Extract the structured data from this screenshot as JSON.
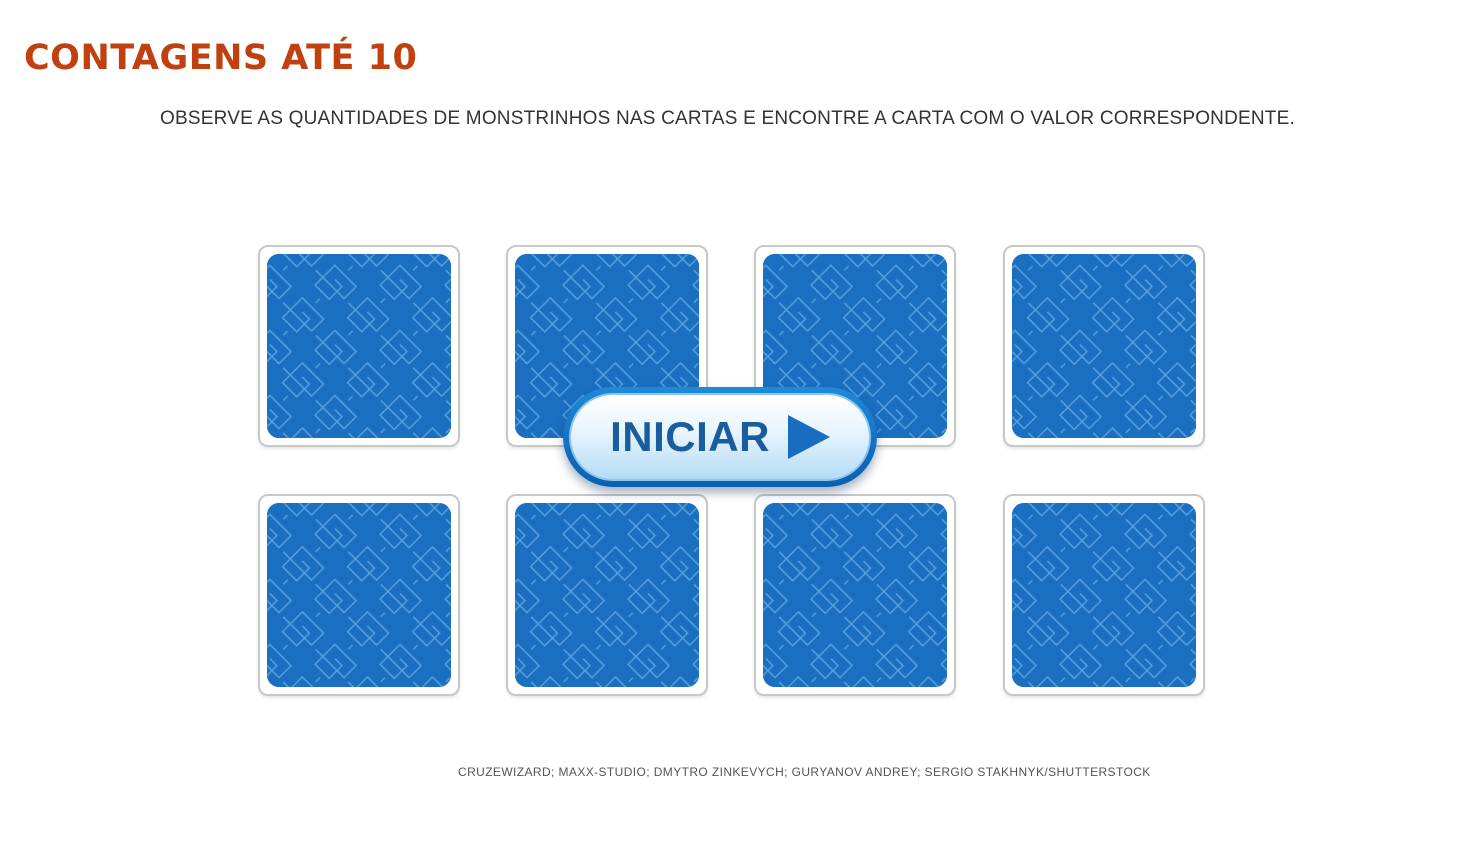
{
  "header": {
    "title": "CONTAGENS ATÉ 10",
    "instructions": "OBSERVE AS QUANTIDADES DE MONSTRINHOS NAS CARTAS E ENCONTRE A CARTA COM O VALOR CORRESPONDENTE."
  },
  "game": {
    "cards": [
      {
        "state": "face-down"
      },
      {
        "state": "face-down"
      },
      {
        "state": "face-down"
      },
      {
        "state": "face-down"
      },
      {
        "state": "face-down"
      },
      {
        "state": "face-down"
      },
      {
        "state": "face-down"
      },
      {
        "state": "face-down"
      }
    ],
    "start_button": {
      "label": "INICIAR",
      "icon": "play-icon"
    }
  },
  "footer": {
    "credits": "CRUZEWIZARD; MAXX-STUDIO; DMYTRO ZINKEVYCH; GURYANOV ANDREY; SERGIO STAKHNYK/SHUTTERSTOCK"
  },
  "colors": {
    "title": "#c0410f",
    "card_back": "#1a6fc0",
    "card_pattern": "#5fa6e4",
    "button_ring": "#0a5fb0",
    "button_text": "#1a5d9e"
  }
}
